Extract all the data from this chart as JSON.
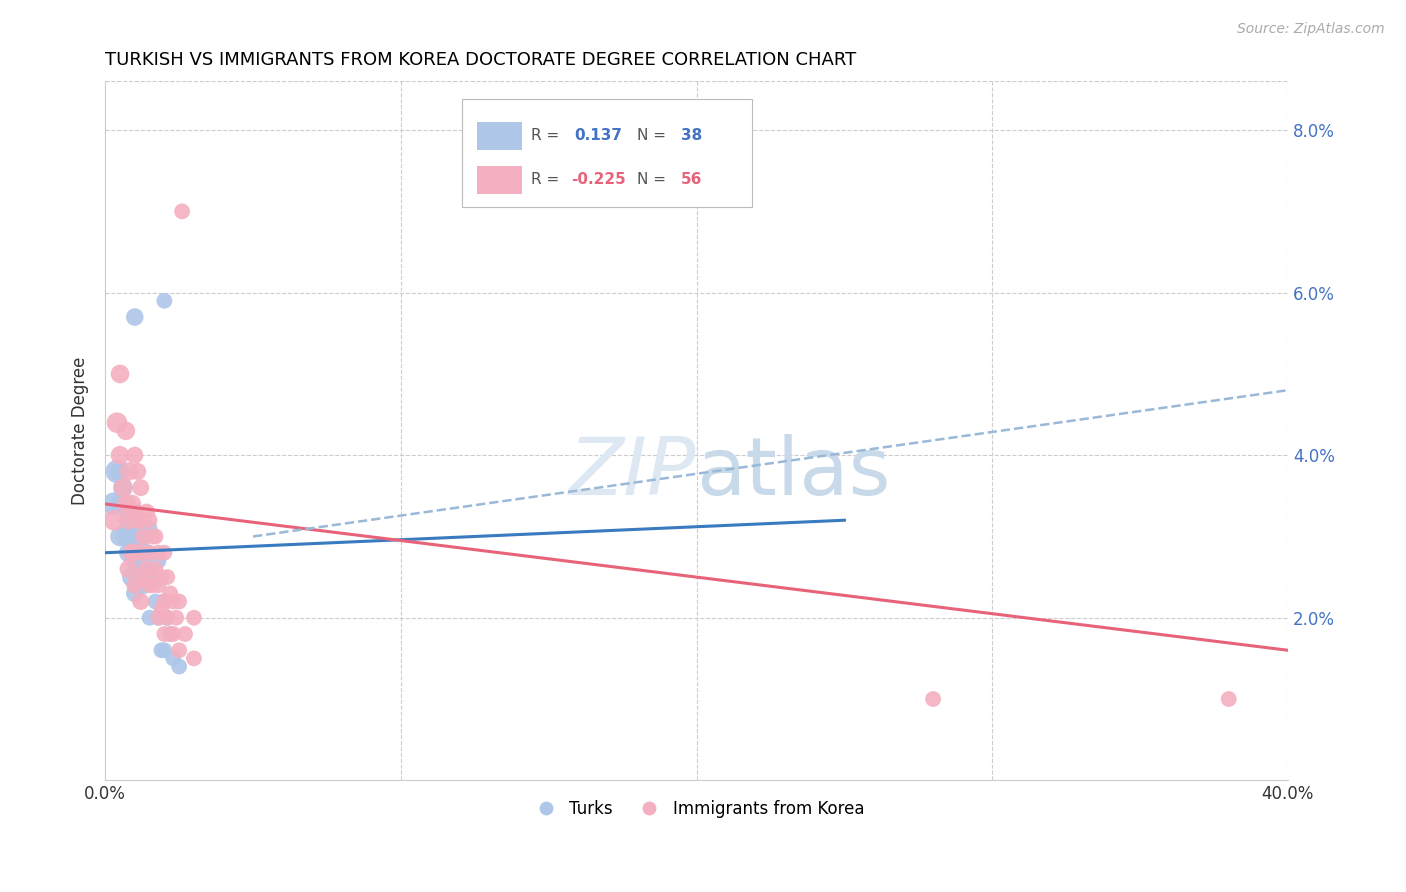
{
  "title": "TURKISH VS IMMIGRANTS FROM KOREA DOCTORATE DEGREE CORRELATION CHART",
  "source": "Source: ZipAtlas.com",
  "ylabel": "Doctorate Degree",
  "xlim": [
    0.0,
    0.4
  ],
  "ylim": [
    0.0,
    0.086
  ],
  "turks_color": "#aec6e8",
  "korea_color": "#f4afc0",
  "turks_line_color": "#3a7abf",
  "korea_line_color": "#e8637a",
  "dashed_line_color": "#9ab8d8",
  "turks_R": "0.137",
  "turks_N": "38",
  "korea_R": "-0.225",
  "korea_N": "56",
  "turks_points": [
    [
      0.003,
      0.034
    ],
    [
      0.004,
      0.038
    ],
    [
      0.005,
      0.038
    ],
    [
      0.005,
      0.034
    ],
    [
      0.005,
      0.03
    ],
    [
      0.006,
      0.036
    ],
    [
      0.007,
      0.034
    ],
    [
      0.007,
      0.03
    ],
    [
      0.008,
      0.032
    ],
    [
      0.008,
      0.028
    ],
    [
      0.009,
      0.03
    ],
    [
      0.009,
      0.025
    ],
    [
      0.01,
      0.033
    ],
    [
      0.01,
      0.03
    ],
    [
      0.01,
      0.027
    ],
    [
      0.01,
      0.023
    ],
    [
      0.011,
      0.028
    ],
    [
      0.012,
      0.031
    ],
    [
      0.012,
      0.026
    ],
    [
      0.013,
      0.03
    ],
    [
      0.013,
      0.024
    ],
    [
      0.014,
      0.028
    ],
    [
      0.015,
      0.031
    ],
    [
      0.015,
      0.026
    ],
    [
      0.015,
      0.02
    ],
    [
      0.016,
      0.025
    ],
    [
      0.017,
      0.022
    ],
    [
      0.018,
      0.027
    ],
    [
      0.018,
      0.02
    ],
    [
      0.019,
      0.016
    ],
    [
      0.02,
      0.022
    ],
    [
      0.02,
      0.016
    ],
    [
      0.021,
      0.02
    ],
    [
      0.022,
      0.018
    ],
    [
      0.023,
      0.015
    ],
    [
      0.025,
      0.014
    ],
    [
      0.01,
      0.057
    ],
    [
      0.02,
      0.059
    ]
  ],
  "korea_points": [
    [
      0.003,
      0.032
    ],
    [
      0.004,
      0.044
    ],
    [
      0.005,
      0.05
    ],
    [
      0.005,
      0.04
    ],
    [
      0.006,
      0.036
    ],
    [
      0.007,
      0.043
    ],
    [
      0.007,
      0.034
    ],
    [
      0.008,
      0.038
    ],
    [
      0.008,
      0.032
    ],
    [
      0.008,
      0.026
    ],
    [
      0.009,
      0.034
    ],
    [
      0.009,
      0.028
    ],
    [
      0.01,
      0.04
    ],
    [
      0.01,
      0.033
    ],
    [
      0.01,
      0.028
    ],
    [
      0.01,
      0.024
    ],
    [
      0.011,
      0.038
    ],
    [
      0.011,
      0.032
    ],
    [
      0.012,
      0.036
    ],
    [
      0.012,
      0.032
    ],
    [
      0.012,
      0.028
    ],
    [
      0.012,
      0.022
    ],
    [
      0.013,
      0.03
    ],
    [
      0.013,
      0.025
    ],
    [
      0.014,
      0.033
    ],
    [
      0.014,
      0.026
    ],
    [
      0.015,
      0.032
    ],
    [
      0.015,
      0.028
    ],
    [
      0.015,
      0.024
    ],
    [
      0.016,
      0.03
    ],
    [
      0.016,
      0.024
    ],
    [
      0.017,
      0.03
    ],
    [
      0.017,
      0.026
    ],
    [
      0.018,
      0.028
    ],
    [
      0.018,
      0.024
    ],
    [
      0.018,
      0.02
    ],
    [
      0.019,
      0.025
    ],
    [
      0.019,
      0.021
    ],
    [
      0.02,
      0.028
    ],
    [
      0.02,
      0.022
    ],
    [
      0.02,
      0.018
    ],
    [
      0.021,
      0.025
    ],
    [
      0.021,
      0.02
    ],
    [
      0.022,
      0.023
    ],
    [
      0.022,
      0.018
    ],
    [
      0.023,
      0.022
    ],
    [
      0.023,
      0.018
    ],
    [
      0.024,
      0.02
    ],
    [
      0.025,
      0.022
    ],
    [
      0.025,
      0.016
    ],
    [
      0.026,
      0.07
    ],
    [
      0.027,
      0.018
    ],
    [
      0.03,
      0.02
    ],
    [
      0.03,
      0.015
    ],
    [
      0.28,
      0.01
    ],
    [
      0.38,
      0.01
    ]
  ],
  "turks_line": [
    0.0,
    0.25,
    0.028,
    0.032
  ],
  "korea_line": [
    0.0,
    0.4,
    0.034,
    0.016
  ],
  "dashed_line": [
    0.05,
    0.4,
    0.03,
    0.048
  ]
}
